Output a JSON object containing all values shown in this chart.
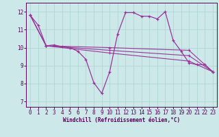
{
  "xlabel": "Windchill (Refroidissement éolien,°C)",
  "bg_color": "#cce8e8",
  "grid_color": "#b0d4d4",
  "line_color": "#993399",
  "xlim": [
    -0.5,
    23.5
  ],
  "ylim": [
    6.7,
    12.5
  ],
  "yticks": [
    7,
    8,
    9,
    10,
    11,
    12
  ],
  "xticks": [
    0,
    1,
    2,
    3,
    4,
    5,
    6,
    7,
    8,
    9,
    10,
    11,
    12,
    13,
    14,
    15,
    16,
    17,
    18,
    19,
    20,
    21,
    22,
    23
  ],
  "main_x": [
    0,
    1,
    2,
    3,
    4,
    5,
    6,
    7,
    8,
    9,
    10,
    11,
    12,
    13,
    14,
    15,
    16,
    17,
    18,
    19,
    20,
    21,
    22,
    23
  ],
  "main_y": [
    11.8,
    11.25,
    10.1,
    10.15,
    10.05,
    10.0,
    9.8,
    9.35,
    8.05,
    7.45,
    8.65,
    10.75,
    11.95,
    11.95,
    11.75,
    11.75,
    11.6,
    12.0,
    10.4,
    9.8,
    9.15,
    9.05,
    9.05,
    8.65
  ],
  "trend_lines": [
    {
      "x": [
        0,
        2,
        10,
        20,
        23
      ],
      "y": [
        11.8,
        10.1,
        10.0,
        9.85,
        8.65
      ]
    },
    {
      "x": [
        0,
        2,
        10,
        20,
        23
      ],
      "y": [
        11.8,
        10.1,
        9.85,
        9.55,
        8.65
      ]
    },
    {
      "x": [
        0,
        2,
        10,
        20,
        23
      ],
      "y": [
        11.8,
        10.1,
        9.7,
        9.25,
        8.65
      ]
    }
  ],
  "marker": "+"
}
